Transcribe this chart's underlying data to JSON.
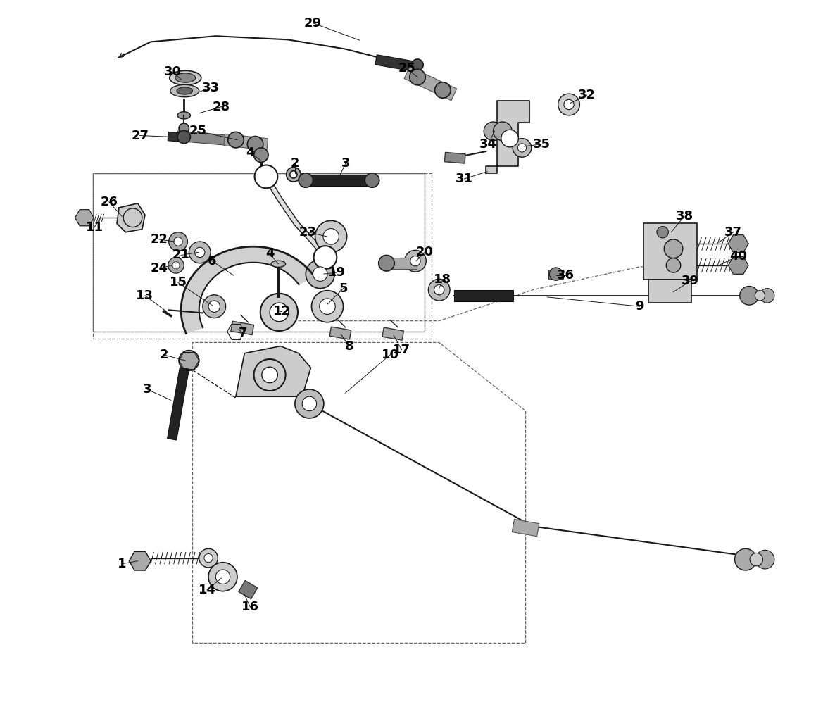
{
  "bg_color": "#ffffff",
  "line_color": "#1a1a1a",
  "label_color": "#000000",
  "fig_width": 11.86,
  "fig_height": 10.24
}
